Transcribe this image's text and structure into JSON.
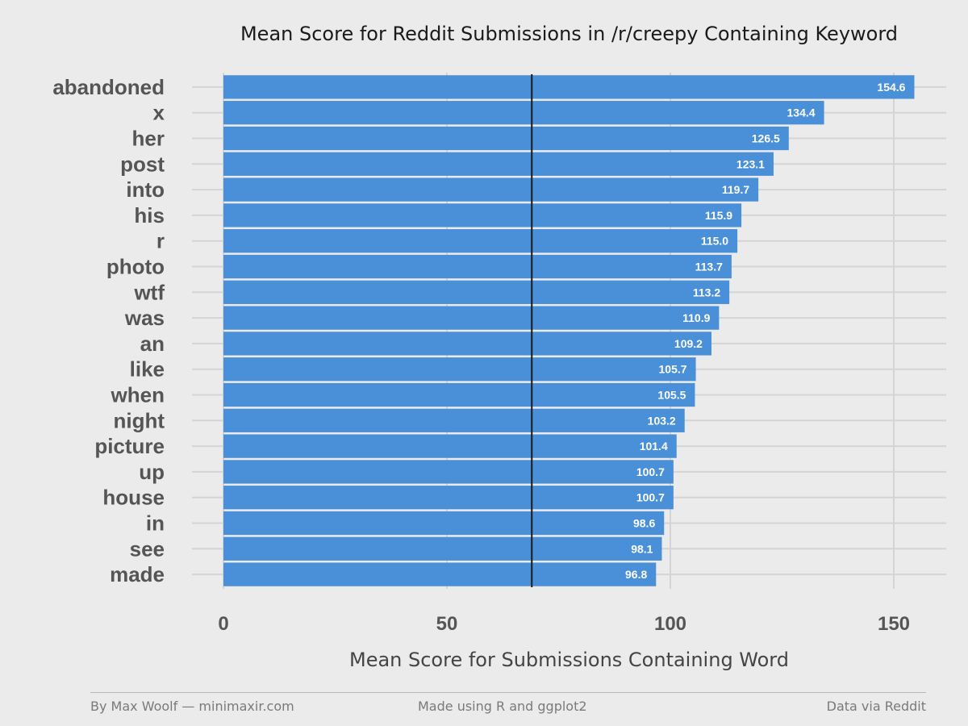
{
  "chart_data": {
    "type": "bar",
    "orientation": "horizontal",
    "title": "Mean Score for Reddit Submissions in /r/creepy Containing Keyword",
    "xlabel": "Mean Score for Submissions Containing Word",
    "ylabel": "",
    "categories": [
      "abandoned",
      "x",
      "her",
      "post",
      "into",
      "his",
      "r",
      "photo",
      "wtf",
      "was",
      "an",
      "like",
      "when",
      "night",
      "picture",
      "up",
      "house",
      "in",
      "see",
      "made"
    ],
    "values": [
      154.6,
      134.4,
      126.5,
      123.1,
      119.7,
      115.9,
      115.0,
      113.7,
      113.2,
      110.9,
      109.2,
      105.7,
      105.5,
      103.2,
      101.4,
      100.7,
      100.7,
      98.6,
      98.1,
      96.8
    ],
    "value_labels": [
      "154.6",
      "134.4",
      "126.5",
      "123.1",
      "119.7",
      "115.9",
      "115.0",
      "113.7",
      "113.2",
      "110.9",
      "109.2",
      "105.7",
      "105.5",
      "103.2",
      "101.4",
      "100.7",
      "100.7",
      "98.6",
      "98.1",
      "96.8"
    ],
    "xlim": [
      0,
      161
    ],
    "x_ticks": [
      0,
      50,
      100,
      150
    ],
    "x_tick_labels": [
      "0",
      "50",
      "100",
      "150"
    ],
    "reference_line": 69,
    "grid": true,
    "legend": "none",
    "colors": {
      "bar": "#4a90d9",
      "reference_line": "#1a1a1a",
      "grid": "#d4d4d4",
      "background": "#ebebeb"
    }
  },
  "footer": {
    "left": "By Max Woolf — minimaxir.com",
    "center": "Made using R and ggplot2",
    "right": "Data via Reddit"
  }
}
